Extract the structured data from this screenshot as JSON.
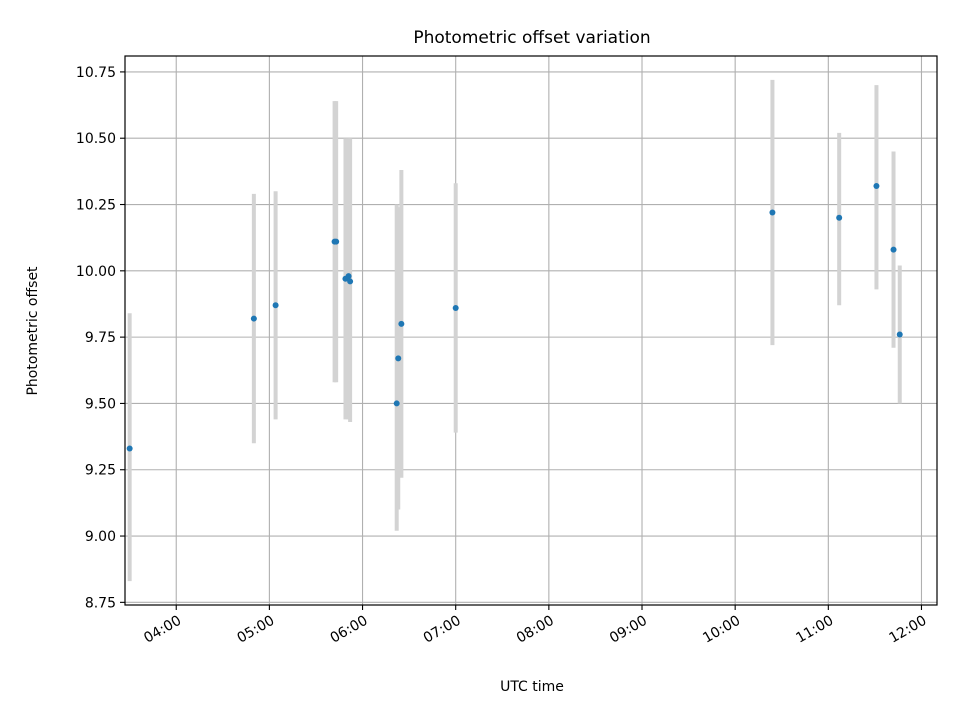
{
  "chart_data": {
    "type": "scatter",
    "title": "Photometric offset variation",
    "xlabel": "UTC time",
    "ylabel": "Photometric offset",
    "x_axis_type": "time",
    "xlim": [
      "03:27",
      "12:10"
    ],
    "ylim": [
      8.74,
      10.81
    ],
    "x_ticks": [
      "04:00",
      "05:00",
      "06:00",
      "07:00",
      "08:00",
      "09:00",
      "10:00",
      "11:00",
      "12:00"
    ],
    "y_ticks": [
      "8.75",
      "9.00",
      "9.25",
      "9.50",
      "9.75",
      "10.00",
      "10.25",
      "10.50",
      "10.75"
    ],
    "grid": true,
    "marker_color": "#1f77b4",
    "errorbar_color": "#d3d3d3",
    "points": [
      {
        "x": "03:30",
        "y": 9.33,
        "err_low": 8.83,
        "err_high": 9.84
      },
      {
        "x": "04:50",
        "y": 9.82,
        "err_low": 9.35,
        "err_high": 10.29
      },
      {
        "x": "05:04",
        "y": 9.87,
        "err_low": 9.44,
        "err_high": 10.3
      },
      {
        "x": "05:42",
        "y": 10.11,
        "err_low": 9.58,
        "err_high": 10.64
      },
      {
        "x": "05:43",
        "y": 10.11,
        "err_low": 9.58,
        "err_high": 10.64
      },
      {
        "x": "05:49",
        "y": 9.97,
        "err_low": 9.44,
        "err_high": 10.5
      },
      {
        "x": "05:51",
        "y": 9.98,
        "err_low": 9.44,
        "err_high": 10.5
      },
      {
        "x": "05:52",
        "y": 9.96,
        "err_low": 9.43,
        "err_high": 10.5
      },
      {
        "x": "06:22",
        "y": 9.5,
        "err_low": 9.02,
        "err_high": 10.25
      },
      {
        "x": "06:23",
        "y": 9.67,
        "err_low": 9.1,
        "err_high": 10.24
      },
      {
        "x": "06:25",
        "y": 9.8,
        "err_low": 9.22,
        "err_high": 10.38
      },
      {
        "x": "07:00",
        "y": 9.86,
        "err_low": 9.39,
        "err_high": 10.33
      },
      {
        "x": "10:24",
        "y": 10.22,
        "err_low": 9.72,
        "err_high": 10.72
      },
      {
        "x": "11:07",
        "y": 10.2,
        "err_low": 9.87,
        "err_high": 10.52
      },
      {
        "x": "11:31",
        "y": 10.32,
        "err_low": 9.93,
        "err_high": 10.7
      },
      {
        "x": "11:42",
        "y": 10.08,
        "err_low": 9.71,
        "err_high": 10.45
      },
      {
        "x": "11:46",
        "y": 9.76,
        "err_low": 9.5,
        "err_high": 10.02
      }
    ]
  }
}
